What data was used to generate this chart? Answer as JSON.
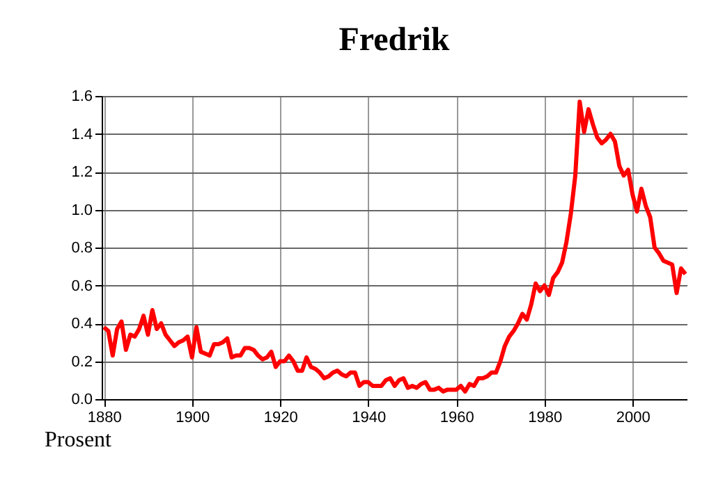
{
  "chart_data": {
    "type": "line",
    "title": "Fredrik",
    "annotations": [
      "Prosent"
    ],
    "x": [
      1880,
      1881,
      1882,
      1883,
      1884,
      1885,
      1886,
      1887,
      1888,
      1889,
      1890,
      1891,
      1892,
      1893,
      1894,
      1895,
      1896,
      1897,
      1898,
      1899,
      1900,
      1901,
      1902,
      1903,
      1904,
      1905,
      1906,
      1907,
      1908,
      1909,
      1910,
      1911,
      1912,
      1913,
      1914,
      1915,
      1916,
      1917,
      1918,
      1919,
      1920,
      1921,
      1922,
      1923,
      1924,
      1925,
      1926,
      1927,
      1928,
      1929,
      1930,
      1931,
      1932,
      1933,
      1934,
      1935,
      1936,
      1937,
      1938,
      1939,
      1940,
      1941,
      1942,
      1943,
      1944,
      1945,
      1946,
      1947,
      1948,
      1949,
      1950,
      1951,
      1952,
      1953,
      1954,
      1955,
      1956,
      1957,
      1958,
      1959,
      1960,
      1961,
      1962,
      1963,
      1964,
      1965,
      1966,
      1967,
      1968,
      1969,
      1970,
      1971,
      1972,
      1973,
      1974,
      1975,
      1976,
      1977,
      1978,
      1979,
      1980,
      1981,
      1982,
      1983,
      1984,
      1985,
      1986,
      1987,
      1988,
      1989,
      1990,
      1991,
      1992,
      1993,
      1994,
      1995,
      1996,
      1997,
      1998,
      1999,
      2000,
      2001,
      2002,
      2003,
      2004,
      2005,
      2006,
      2007,
      2008,
      2009,
      2010,
      2011,
      2012
    ],
    "series": [
      {
        "color": "#ff0000",
        "values": [
          0.38,
          0.36,
          0.23,
          0.37,
          0.41,
          0.26,
          0.34,
          0.33,
          0.37,
          0.44,
          0.34,
          0.47,
          0.37,
          0.4,
          0.34,
          0.31,
          0.28,
          0.3,
          0.31,
          0.33,
          0.22,
          0.38,
          0.25,
          0.24,
          0.23,
          0.29,
          0.29,
          0.3,
          0.32,
          0.22,
          0.23,
          0.23,
          0.27,
          0.27,
          0.26,
          0.23,
          0.21,
          0.22,
          0.25,
          0.17,
          0.2,
          0.2,
          0.23,
          0.2,
          0.15,
          0.15,
          0.22,
          0.17,
          0.16,
          0.14,
          0.11,
          0.12,
          0.14,
          0.15,
          0.13,
          0.12,
          0.14,
          0.14,
          0.07,
          0.09,
          0.09,
          0.07,
          0.07,
          0.07,
          0.1,
          0.11,
          0.07,
          0.1,
          0.11,
          0.06,
          0.07,
          0.06,
          0.08,
          0.09,
          0.05,
          0.05,
          0.06,
          0.04,
          0.05,
          0.05,
          0.05,
          0.07,
          0.04,
          0.08,
          0.07,
          0.11,
          0.11,
          0.12,
          0.14,
          0.14,
          0.2,
          0.28,
          0.33,
          0.36,
          0.4,
          0.45,
          0.42,
          0.5,
          0.61,
          0.57,
          0.6,
          0.55,
          0.64,
          0.67,
          0.72,
          0.83,
          0.98,
          1.18,
          1.57,
          1.41,
          1.53,
          1.45,
          1.38,
          1.35,
          1.37,
          1.4,
          1.36,
          1.23,
          1.18,
          1.21,
          1.08,
          0.99,
          1.11,
          1.02,
          0.96,
          0.8,
          0.77,
          0.73,
          0.72,
          0.71,
          0.56,
          0.69,
          0.66
        ]
      }
    ],
    "xlim": [
      1879.5,
      2012.3
    ],
    "xticks": [
      1880,
      1900,
      1920,
      1940,
      1960,
      1980,
      2000
    ],
    "ylim": [
      0,
      1.6
    ],
    "yticks": [
      {
        "value": 0,
        "label": "0.0"
      },
      0.2,
      0.4,
      0.6,
      0.8,
      {
        "value": 1,
        "label": "1.0"
      },
      1.2,
      1.4,
      1.6
    ],
    "grid": true,
    "marker": "none",
    "line_style": "solid"
  }
}
